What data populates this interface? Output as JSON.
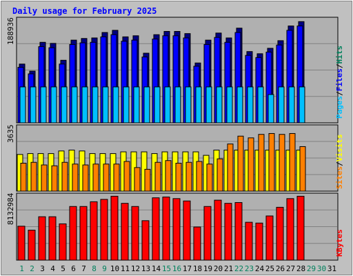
{
  "title": "Daily usage for February 2025",
  "colors": {
    "hits": "#00c0ff",
    "files": "#0000ff",
    "sites": "#ff8000",
    "visits": "#ffff00",
    "kbytes": "#ff0000",
    "title": "#0000ff",
    "weekend_day": "#00805c",
    "weekday_day": "#000000"
  },
  "chart_data": [
    {
      "type": "bar",
      "panel": "hits-files-pages",
      "max_label": "188936",
      "legend": [
        "Pages",
        "Files",
        "Hits"
      ],
      "x": [
        1,
        2,
        3,
        4,
        5,
        6,
        7,
        8,
        9,
        10,
        11,
        12,
        13,
        14,
        15,
        16,
        17,
        18,
        19,
        20,
        21,
        22,
        23,
        24,
        25,
        26,
        27,
        28
      ],
      "series": [
        {
          "name": "Hits",
          "values": [
            108000,
            95000,
            148000,
            146000,
            115000,
            152000,
            155000,
            156000,
            166000,
            170000,
            158000,
            160000,
            128000,
            162000,
            168000,
            168000,
            164000,
            110000,
            152000,
            165000,
            156000,
            174000,
            131000,
            127000,
            137000,
            151000,
            178000,
            186000
          ]
        },
        {
          "name": "Files",
          "values": [
            102000,
            90000,
            140000,
            138000,
            108000,
            144000,
            147000,
            148000,
            158000,
            162000,
            150000,
            152000,
            121000,
            154000,
            160000,
            160000,
            156000,
            104000,
            144000,
            157000,
            148000,
            166000,
            124000,
            120000,
            130000,
            143000,
            170000,
            178000
          ]
        },
        {
          "name": "Pages",
          "values": [
            66000,
            66000,
            66000,
            66000,
            66000,
            66000,
            66000,
            66000,
            66000,
            66000,
            66000,
            66000,
            66000,
            66000,
            66000,
            66000,
            66000,
            66000,
            66000,
            66000,
            66000,
            66000,
            66000,
            66000,
            52000,
            66000,
            66000,
            66000
          ]
        }
      ]
    },
    {
      "type": "bar",
      "panel": "visits-sites",
      "max_label": "3635",
      "legend": [
        "Sites",
        "Visits"
      ],
      "x": [
        1,
        2,
        3,
        4,
        5,
        6,
        7,
        8,
        9,
        10,
        11,
        12,
        13,
        14,
        15,
        16,
        17,
        18,
        19,
        20,
        21,
        22,
        23,
        24,
        25,
        26,
        27,
        28
      ],
      "series": [
        {
          "name": "Visits",
          "values": [
            2100,
            2150,
            2150,
            2150,
            2300,
            2350,
            2300,
            2150,
            2150,
            2150,
            2250,
            2250,
            2250,
            2150,
            2250,
            2250,
            2250,
            2250,
            2050,
            2350,
            2350,
            2350,
            2350,
            2350,
            2350,
            2350,
            2350,
            2350
          ]
        },
        {
          "name": "Sites",
          "values": [
            1600,
            1650,
            1500,
            1450,
            1650,
            1550,
            1500,
            1550,
            1550,
            1550,
            1700,
            1350,
            1250,
            1650,
            1750,
            1600,
            1650,
            1700,
            1550,
            1850,
            2700,
            3150,
            3050,
            3250,
            3300,
            3250,
            3300,
            2550
          ]
        }
      ]
    },
    {
      "type": "bar",
      "panel": "kbytes",
      "max_label": "8132984",
      "legend": [
        "KBytes"
      ],
      "x": [
        1,
        2,
        3,
        4,
        5,
        6,
        7,
        8,
        9,
        10,
        11,
        12,
        13,
        14,
        15,
        16,
        17,
        18,
        19,
        20,
        21,
        22,
        23,
        24,
        25,
        26,
        27,
        28
      ],
      "series": [
        {
          "name": "KBytes",
          "values": [
            4300000,
            3800000,
            5500000,
            5500000,
            4600000,
            6800000,
            6800000,
            7400000,
            7700000,
            8100000,
            7200000,
            6800000,
            5000000,
            7900000,
            8000000,
            7800000,
            7500000,
            4200000,
            6800000,
            7600000,
            7200000,
            7300000,
            4800000,
            4700000,
            5600000,
            6700000,
            7800000,
            8100000
          ]
        }
      ]
    }
  ],
  "days": [
    "1",
    "2",
    "3",
    "4",
    "5",
    "6",
    "7",
    "8",
    "9",
    "10",
    "11",
    "12",
    "13",
    "14",
    "15",
    "16",
    "17",
    "18",
    "19",
    "20",
    "21",
    "22",
    "23",
    "24",
    "25",
    "26",
    "27",
    "28",
    "29",
    "30",
    "31"
  ],
  "weekend_days": [
    1,
    2,
    8,
    9,
    15,
    16,
    22,
    23,
    29,
    30
  ]
}
